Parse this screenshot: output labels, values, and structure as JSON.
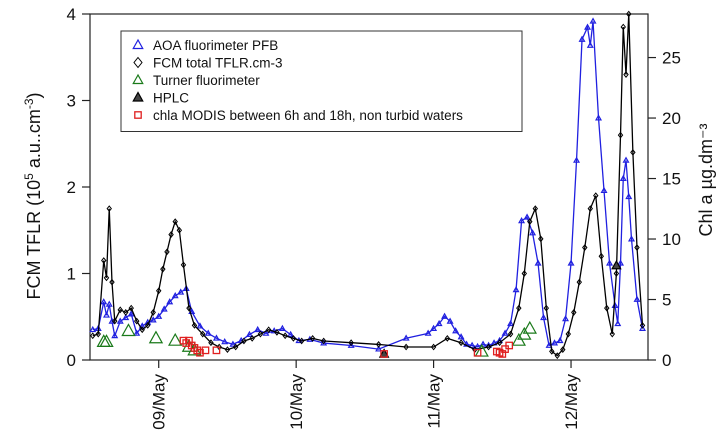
{
  "chart_data": {
    "type": "line",
    "title": "",
    "xlabel": "",
    "ylabel_left_main": "FCM TFLR (10",
    "ylabel_left_sup1": "5",
    "ylabel_left_mid": " a.u..cm",
    "ylabel_left_sup2": "-3",
    "ylabel_left_end": ")",
    "ylabel_right": "Chl a µg.dm⁻³",
    "x_axis": {
      "unit": "days since 08/May 00:00",
      "range": [
        0.5,
        4.56
      ],
      "ticks": [
        {
          "value": 1,
          "label": "09/May"
        },
        {
          "value": 2,
          "label": "10/May"
        },
        {
          "value": 3,
          "label": "11/May"
        },
        {
          "value": 4,
          "label": "12/May"
        }
      ]
    },
    "y_left": {
      "range": [
        0,
        4
      ],
      "ticks": [
        "0",
        "1",
        "2",
        "3",
        "4"
      ],
      "values": [
        0,
        1,
        2,
        3,
        4
      ]
    },
    "y_right": {
      "range": [
        0,
        28.6
      ],
      "ticks": [
        "0",
        "5",
        "10",
        "15",
        "20",
        "25"
      ],
      "values": [
        0,
        5,
        10,
        15,
        20,
        25
      ]
    },
    "grid": false,
    "legend_position": "top-left",
    "legend": [
      {
        "label": "AOA fluorimeter PFB",
        "marker": "triangle",
        "color": "#2020e0"
      },
      {
        "label": "FCM total TFLR.cm-3",
        "marker": "diamond",
        "color": "#000000"
      },
      {
        "label": "Turner fluorimeter",
        "marker": "triangle",
        "color": "#1a7a1a"
      },
      {
        "label": "HPLC",
        "marker": "triangle-filled",
        "color": "#444444"
      },
      {
        "label": "chla MODIS between 6h and 18h, non turbid waters",
        "marker": "square",
        "color": "#e02020"
      }
    ],
    "series": [
      {
        "name": "AOA fluorimeter PFB",
        "axis": "right",
        "color": "#2020e0",
        "marker": "triangle",
        "x": [
          0.52,
          0.56,
          0.6,
          0.62,
          0.64,
          0.66,
          0.68,
          0.72,
          0.76,
          0.8,
          0.84,
          0.88,
          0.92,
          0.96,
          1.0,
          1.04,
          1.08,
          1.12,
          1.16,
          1.2,
          1.24,
          1.3,
          1.36,
          1.42,
          1.48,
          1.54,
          1.6,
          1.66,
          1.72,
          1.78,
          1.84,
          1.9,
          1.96,
          2.02,
          2.1,
          2.2,
          2.4,
          2.6,
          2.8,
          2.96,
          3.0,
          3.04,
          3.08,
          3.12,
          3.16,
          3.2,
          3.24,
          3.28,
          3.32,
          3.36,
          3.4,
          3.44,
          3.48,
          3.52,
          3.56,
          3.6,
          3.64,
          3.68,
          3.72,
          3.76,
          3.8,
          3.84,
          3.88,
          3.92,
          3.96,
          4.0,
          4.04,
          4.08,
          4.12,
          4.14,
          4.16,
          4.2,
          4.24,
          4.28,
          4.32,
          4.34,
          4.36,
          4.38,
          4.4,
          4.42,
          4.44,
          4.48,
          4.52
        ],
        "y": [
          2.5,
          2.6,
          4.8,
          3.7,
          4.6,
          3.2,
          2.0,
          3.2,
          3.5,
          3.8,
          2.2,
          2.8,
          3.1,
          3.3,
          3.6,
          4.2,
          4.8,
          5.3,
          5.6,
          5.9,
          4.0,
          2.8,
          2.2,
          1.8,
          1.5,
          1.3,
          1.6,
          2.1,
          2.5,
          2.2,
          2.4,
          2.6,
          2.1,
          1.6,
          1.7,
          1.4,
          1.2,
          0.9,
          1.8,
          2.2,
          2.6,
          3.0,
          3.6,
          3.2,
          2.4,
          1.9,
          1.3,
          1.2,
          1.1,
          1.3,
          1.2,
          1.4,
          1.6,
          2.2,
          3.0,
          5.8,
          11.5,
          11.8,
          10.5,
          8.0,
          3.5,
          1.2,
          1.4,
          1.6,
          3.4,
          8.0,
          16.5,
          26.5,
          27.5,
          26.0,
          28.0,
          20.0,
          14.0,
          8.0,
          4.5,
          3.0,
          8.0,
          15.0,
          16.5,
          13.5,
          10.0,
          5.0,
          2.6
        ]
      },
      {
        "name": "FCM total TFLR.cm-3",
        "axis": "left",
        "color": "#000000",
        "marker": "diamond",
        "x": [
          0.52,
          0.56,
          0.6,
          0.62,
          0.64,
          0.66,
          0.68,
          0.72,
          0.76,
          0.8,
          0.84,
          0.88,
          0.92,
          0.96,
          1.0,
          1.03,
          1.06,
          1.09,
          1.12,
          1.15,
          1.18,
          1.22,
          1.26,
          1.32,
          1.38,
          1.44,
          1.5,
          1.56,
          1.62,
          1.68,
          1.74,
          1.8,
          1.86,
          1.92,
          1.98,
          2.04,
          2.12,
          2.2,
          2.4,
          2.6,
          2.8,
          3.0,
          3.1,
          3.2,
          3.3,
          3.4,
          3.48,
          3.56,
          3.62,
          3.66,
          3.7,
          3.74,
          3.78,
          3.82,
          3.86,
          3.9,
          3.94,
          3.98,
          4.02,
          4.06,
          4.1,
          4.14,
          4.18,
          4.22,
          4.26,
          4.3,
          4.33,
          4.36,
          4.38,
          4.4,
          4.42,
          4.45,
          4.48,
          4.52
        ],
        "y": [
          0.28,
          0.3,
          1.15,
          0.95,
          1.75,
          0.9,
          0.45,
          0.58,
          0.55,
          0.6,
          0.45,
          0.35,
          0.4,
          0.55,
          0.8,
          1.05,
          1.25,
          1.45,
          1.6,
          1.5,
          1.1,
          0.6,
          0.4,
          0.3,
          0.2,
          0.15,
          0.12,
          0.15,
          0.22,
          0.25,
          0.3,
          0.35,
          0.32,
          0.28,
          0.25,
          0.22,
          0.25,
          0.22,
          0.2,
          0.18,
          0.15,
          0.15,
          0.25,
          0.2,
          0.12,
          0.15,
          0.2,
          0.3,
          0.6,
          1.0,
          1.6,
          1.75,
          1.4,
          0.6,
          0.1,
          0.05,
          0.12,
          0.3,
          0.55,
          0.9,
          1.3,
          1.75,
          1.9,
          1.2,
          0.6,
          0.3,
          1.0,
          2.6,
          3.85,
          3.3,
          4.0,
          2.4,
          1.3,
          0.4
        ]
      },
      {
        "name": "Turner fluorimeter",
        "axis": "right",
        "color": "#1a7a1a",
        "marker": "triangle",
        "x": [
          0.6,
          0.62,
          0.78,
          0.98,
          1.12,
          1.22,
          1.26,
          3.35,
          3.62,
          3.66,
          3.7
        ],
        "y": [
          1.5,
          1.5,
          2.4,
          1.8,
          1.6,
          1.1,
          0.8,
          0.7,
          1.6,
          2.1,
          2.6
        ]
      },
      {
        "name": "HPLC",
        "axis": "right",
        "color": "#444444",
        "marker": "triangle-filled",
        "x": [
          2.64,
          4.33
        ],
        "y": [
          0.5,
          7.8
        ]
      },
      {
        "name": "chla MODIS between 6h and 18h, non turbid waters",
        "axis": "right",
        "color": "#e02020",
        "marker": "square",
        "x": [
          1.18,
          1.2,
          1.22,
          1.24,
          1.26,
          1.28,
          1.3,
          1.34,
          1.42,
          2.64,
          3.32,
          3.46,
          3.48,
          3.5,
          3.52,
          3.55
        ],
        "y": [
          1.6,
          1.4,
          1.6,
          1.2,
          1.0,
          0.8,
          0.6,
          0.8,
          0.8,
          0.5,
          0.6,
          0.7,
          0.6,
          0.5,
          0.9,
          1.2
        ]
      }
    ]
  }
}
